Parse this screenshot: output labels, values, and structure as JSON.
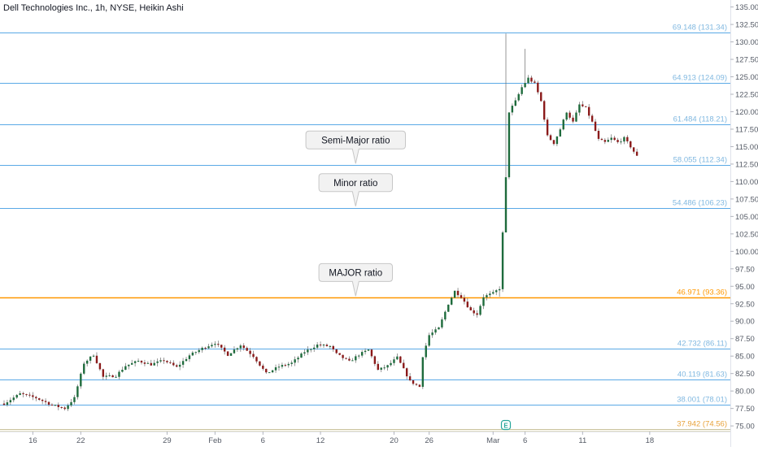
{
  "header": {
    "title": "Dell Technologies Inc., 1h, NYSE, Heikin Ashi"
  },
  "colors": {
    "up": "#26a69a",
    "up_body": "#1e6b3c",
    "down": "#8b1a1a",
    "fib_line": "#5aa9e6",
    "fib_label": "#80b8e0",
    "major_line": "#ff9800",
    "bottom_line": "#c9c29a"
  },
  "chart_data": {
    "type": "candlestick",
    "ylim": [
      74.2,
      136.0
    ],
    "y_ticks": [
      "75.00",
      "77.50",
      "80.00",
      "82.50",
      "85.00",
      "87.50",
      "90.00",
      "92.50",
      "95.00",
      "97.50",
      "100.00",
      "102.50",
      "105.00",
      "107.50",
      "110.00",
      "112.50",
      "115.00",
      "117.50",
      "120.00",
      "122.50",
      "125.00",
      "127.50",
      "130.00",
      "132.50",
      "135.00"
    ],
    "x_ticks": [
      {
        "label": "16",
        "i": 9
      },
      {
        "label": "22",
        "i": 24
      },
      {
        "label": "29",
        "i": 51
      },
      {
        "label": "Feb",
        "i": 66
      },
      {
        "label": "6",
        "i": 81
      },
      {
        "label": "12",
        "i": 99
      },
      {
        "label": "20",
        "i": 122
      },
      {
        "label": "26",
        "i": 133
      },
      {
        "label": "Mar",
        "i": 153
      },
      {
        "label": "6",
        "i": 163
      },
      {
        "label": "11",
        "i": 181
      },
      {
        "label": "18",
        "i": 202
      }
    ],
    "fib_levels": [
      {
        "label": "69.148 (131.34)",
        "value": 131.34
      },
      {
        "label": "64.913 (124.09)",
        "value": 124.09
      },
      {
        "label": "61.484 (118.21)",
        "value": 118.21
      },
      {
        "label": "58.055 (112.34)",
        "value": 112.34
      },
      {
        "label": "54.486 (106.23)",
        "value": 106.23
      },
      {
        "label": "46.971 (93.36)",
        "value": 93.36,
        "major": true
      },
      {
        "label": "42.732 (86.11)",
        "value": 86.11
      },
      {
        "label": "40.119 (81.63)",
        "value": 81.63
      },
      {
        "label": "38.001 (78.01)",
        "value": 78.01
      },
      {
        "label": "37.942 (74.56)",
        "value": 74.56,
        "bottom": true
      }
    ],
    "annotations": [
      {
        "text": "Semi-Major ratio",
        "target": 112.34,
        "i": 110
      },
      {
        "text": "Minor ratio",
        "target": 106.23,
        "i": 110
      },
      {
        "text": "MAJOR ratio",
        "target": 93.36,
        "i": 110
      }
    ],
    "event_marker": {
      "label": "E",
      "i": 157
    },
    "anchors": [
      [
        0,
        78.2
      ],
      [
        5,
        79.6
      ],
      [
        10,
        79.0
      ],
      [
        15,
        78.0
      ],
      [
        19,
        77.5
      ],
      [
        22,
        79.0
      ],
      [
        25,
        84.0
      ],
      [
        28,
        85.2
      ],
      [
        31,
        82.0
      ],
      [
        35,
        82.2
      ],
      [
        38,
        83.6
      ],
      [
        42,
        84.3
      ],
      [
        46,
        83.8
      ],
      [
        50,
        84.4
      ],
      [
        54,
        83.4
      ],
      [
        58,
        85.1
      ],
      [
        62,
        86.1
      ],
      [
        66,
        86.9
      ],
      [
        70,
        85.2
      ],
      [
        74,
        86.6
      ],
      [
        78,
        85.0
      ],
      [
        82,
        82.5
      ],
      [
        86,
        83.5
      ],
      [
        90,
        84.0
      ],
      [
        94,
        85.6
      ],
      [
        98,
        86.6
      ],
      [
        102,
        86.4
      ],
      [
        104,
        85.3
      ],
      [
        108,
        84.2
      ],
      [
        111,
        85.2
      ],
      [
        114,
        85.9
      ],
      [
        117,
        83.0
      ],
      [
        120,
        83.6
      ],
      [
        123,
        84.8
      ],
      [
        127,
        81.4
      ],
      [
        130,
        80.6
      ],
      [
        131,
        85.0
      ],
      [
        133,
        88.0
      ],
      [
        136,
        89.0
      ],
      [
        139,
        92.5
      ],
      [
        141,
        94.3
      ],
      [
        143,
        93.5
      ],
      [
        146,
        91.5
      ],
      [
        148,
        91.0
      ],
      [
        150,
        93.5
      ],
      [
        153,
        94.0
      ],
      [
        155,
        94.7
      ],
      [
        157,
        110.5
      ],
      [
        158,
        120.0
      ],
      [
        160,
        121.5
      ],
      [
        162,
        123.5
      ],
      [
        164,
        124.8
      ],
      [
        166,
        124.0
      ],
      [
        168,
        121.5
      ],
      [
        170,
        116.5
      ],
      [
        172,
        115.5
      ],
      [
        174,
        117.5
      ],
      [
        176,
        120.0
      ],
      [
        178,
        118.5
      ],
      [
        180,
        121.0
      ],
      [
        182,
        120.5
      ],
      [
        184,
        118.5
      ],
      [
        186,
        116.0
      ],
      [
        188,
        115.6
      ],
      [
        190,
        116.2
      ],
      [
        192,
        115.6
      ],
      [
        194,
        116.2
      ],
      [
        196,
        115.0
      ],
      [
        198,
        113.6
      ]
    ],
    "candle_count": 199
  }
}
